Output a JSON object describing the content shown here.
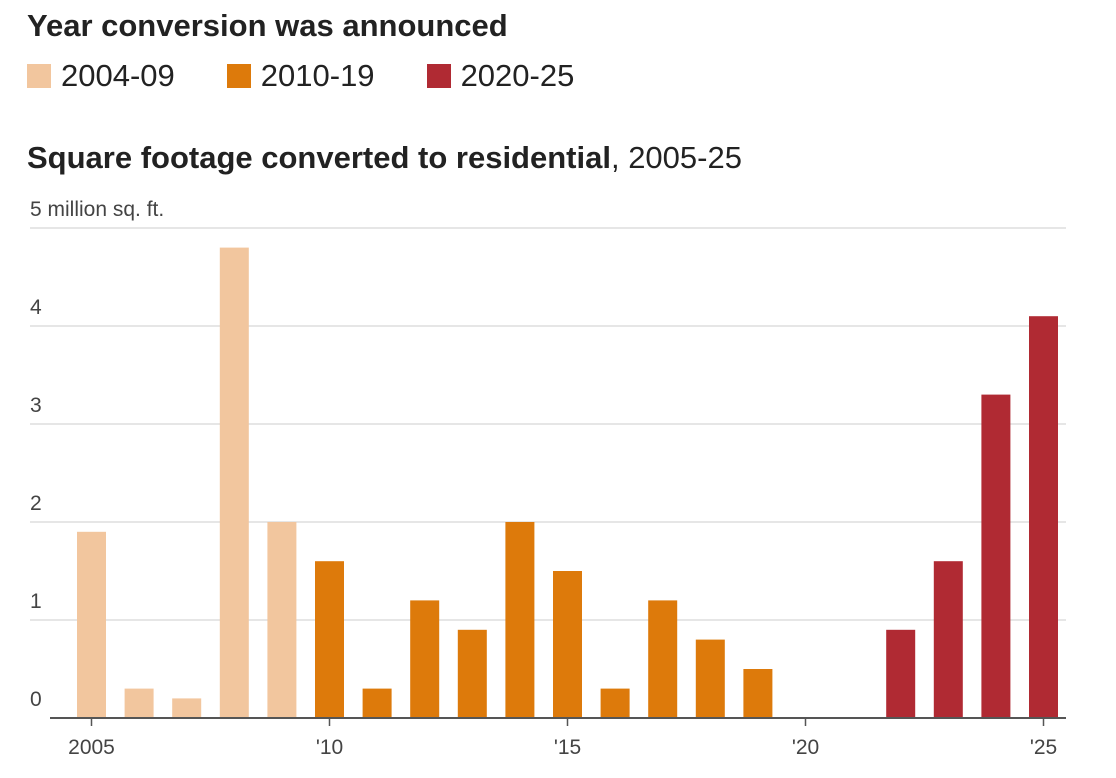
{
  "legend": {
    "title": "Year conversion was announced",
    "items": [
      {
        "label": "2004-09",
        "color": "#f2c69e"
      },
      {
        "label": "2010-19",
        "color": "#dd7a0b"
      },
      {
        "label": "2020-25",
        "color": "#b02a33"
      }
    ]
  },
  "chart_data": {
    "type": "bar",
    "title": "Square footage converted to residential",
    "subtitle": ", 2005-25",
    "unit_label": "5 million sq. ft.",
    "ylim": [
      0,
      5
    ],
    "y_ticks": [
      0,
      1,
      2,
      3,
      4
    ],
    "x_ticks": [
      {
        "year": 2005,
        "label": "2005"
      },
      {
        "year": 2010,
        "label": "'10"
      },
      {
        "year": 2015,
        "label": "'15"
      },
      {
        "year": 2020,
        "label": "'20"
      },
      {
        "year": 2025,
        "label": "'25"
      }
    ],
    "bars": [
      {
        "year": 2005,
        "value": 1.9,
        "group": "2004-09"
      },
      {
        "year": 2006,
        "value": 0.3,
        "group": "2004-09"
      },
      {
        "year": 2007,
        "value": 0.2,
        "group": "2004-09"
      },
      {
        "year": 2008,
        "value": 4.8,
        "group": "2004-09"
      },
      {
        "year": 2009,
        "value": 2.0,
        "group": "2004-09"
      },
      {
        "year": 2010,
        "value": 1.6,
        "group": "2010-19"
      },
      {
        "year": 2011,
        "value": 0.3,
        "group": "2010-19"
      },
      {
        "year": 2012,
        "value": 1.2,
        "group": "2010-19"
      },
      {
        "year": 2013,
        "value": 0.9,
        "group": "2010-19"
      },
      {
        "year": 2014,
        "value": 2.0,
        "group": "2010-19"
      },
      {
        "year": 2015,
        "value": 1.5,
        "group": "2010-19"
      },
      {
        "year": 2016,
        "value": 0.3,
        "group": "2010-19"
      },
      {
        "year": 2017,
        "value": 1.2,
        "group": "2010-19"
      },
      {
        "year": 2018,
        "value": 0.8,
        "group": "2010-19"
      },
      {
        "year": 2019,
        "value": 0.5,
        "group": "2010-19"
      },
      {
        "year": 2020,
        "value": 0,
        "group": "2020-25"
      },
      {
        "year": 2021,
        "value": 0,
        "group": "2020-25"
      },
      {
        "year": 2022,
        "value": 0.9,
        "group": "2020-25"
      },
      {
        "year": 2023,
        "value": 1.6,
        "group": "2020-25"
      },
      {
        "year": 2024,
        "value": 3.3,
        "group": "2020-25"
      },
      {
        "year": 2025,
        "value": 4.1,
        "group": "2020-25"
      }
    ]
  }
}
